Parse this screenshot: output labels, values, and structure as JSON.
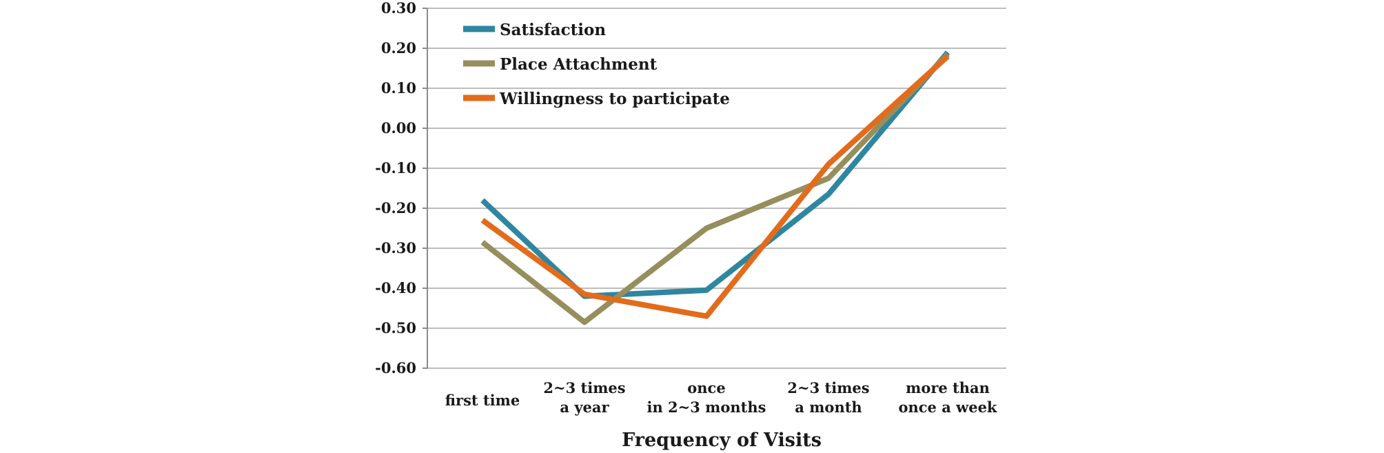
{
  "chart_data": {
    "type": "line",
    "title": "",
    "xlabel": "Frequency of Visits",
    "ylabel": "",
    "ylim": [
      -0.6,
      0.3
    ],
    "yticks": [
      "0.30",
      "0.20",
      "0.10",
      "0.00",
      "-0.10",
      "-0.20",
      "-0.30",
      "-0.40",
      "-0.50",
      "-0.60"
    ],
    "categories": [
      [
        "first time"
      ],
      [
        "2~3 times",
        "a year"
      ],
      [
        "once",
        "in 2~3 months"
      ],
      [
        "2~3 times",
        "a month"
      ],
      [
        "more than",
        "once a week"
      ]
    ],
    "grid": true,
    "legend": "top-left",
    "series": [
      {
        "name": "Satisfaction",
        "color": "#2e86a0",
        "values": [
          -0.18,
          -0.42,
          -0.405,
          -0.165,
          0.19
        ]
      },
      {
        "name": "Place Attachment",
        "color": "#968e5c",
        "values": [
          -0.285,
          -0.485,
          -0.25,
          -0.125,
          0.185
        ]
      },
      {
        "name": "Willingness to participate",
        "color": "#e36b1b",
        "values": [
          -0.23,
          -0.415,
          -0.47,
          -0.09,
          0.18
        ]
      }
    ]
  }
}
